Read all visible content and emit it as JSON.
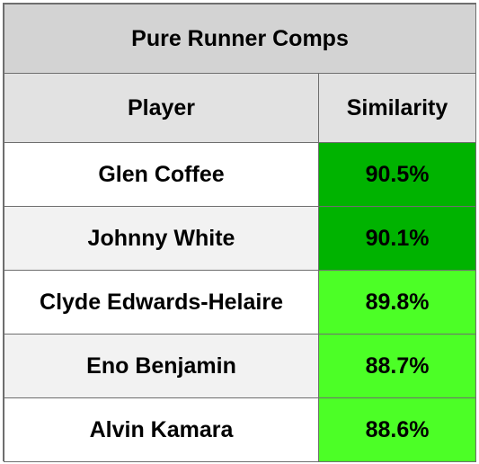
{
  "table": {
    "title": "Pure Runner Comps",
    "headers": {
      "player": "Player",
      "similarity": "Similarity"
    },
    "rows": [
      {
        "player": "Glen Coffee",
        "similarity": "90.5%",
        "color": "#00b300"
      },
      {
        "player": "Johnny White",
        "similarity": "90.1%",
        "color": "#00b300"
      },
      {
        "player": "Clyde Edwards-Helaire",
        "similarity": "89.8%",
        "color": "#4cff26"
      },
      {
        "player": "Eno Benjamin",
        "similarity": "88.7%",
        "color": "#4cff26"
      },
      {
        "player": "Alvin Kamara",
        "similarity": "88.6%",
        "color": "#4cff26"
      }
    ]
  }
}
